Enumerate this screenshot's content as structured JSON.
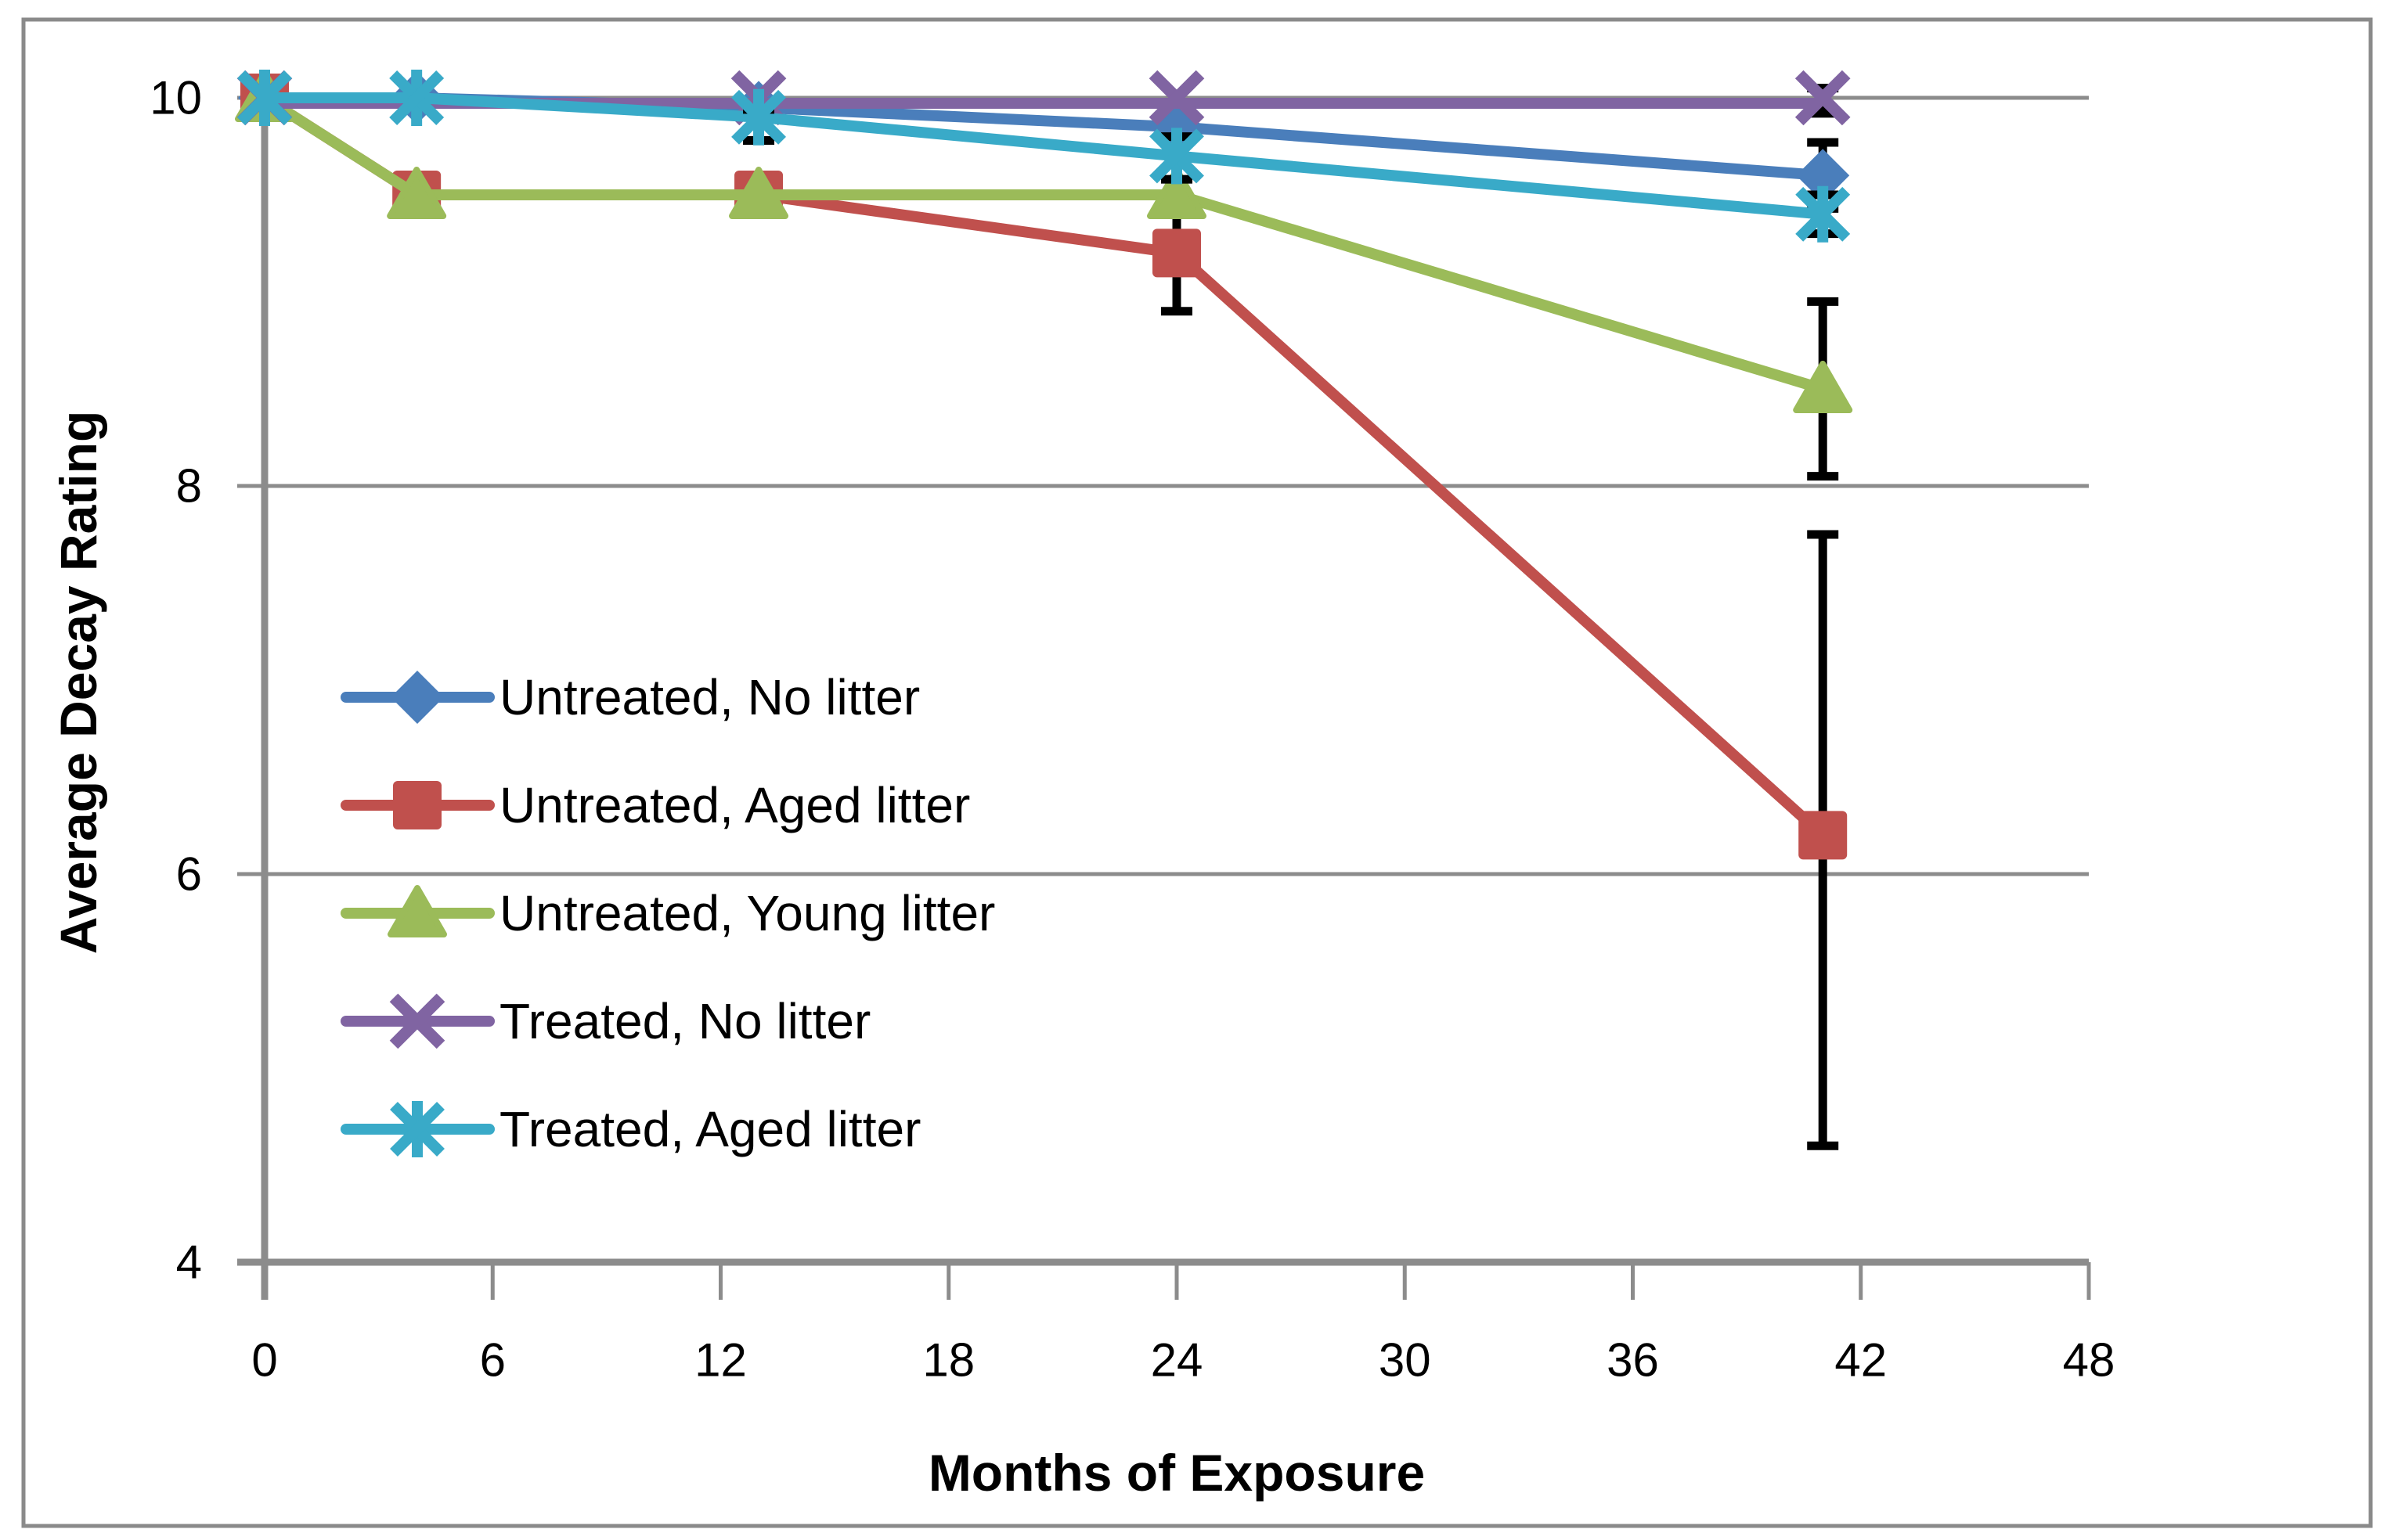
{
  "chart_data": {
    "type": "line",
    "title": "",
    "xlabel": "Months of Exposure",
    "ylabel": "Average Decay Rating",
    "x": [
      0,
      4,
      13,
      24,
      41
    ],
    "xlim": [
      0,
      48
    ],
    "ylim": [
      4,
      10
    ],
    "x_ticks": [
      0,
      6,
      12,
      18,
      24,
      30,
      36,
      42,
      48
    ],
    "y_ticks": [
      10,
      8,
      6,
      4
    ],
    "grid": "horizontal-gridlines-at-10-8-6",
    "legend_position": "inside-middle-left",
    "background_color": "#FFFFFF",
    "gridline_color": "#8C8C8C",
    "axis_color": "#8C8C8C",
    "border_color": "#8A8A8A",
    "error_bar_color": "#000000",
    "series": [
      {
        "name": "Untreated, No litter",
        "color": "#4A7EBB",
        "marker": "diamond",
        "values": [
          10,
          10,
          9.95,
          9.85,
          9.6
        ],
        "error_bars": {
          "41": {
            "plus": 0.17,
            "minus": 0.17
          }
        }
      },
      {
        "name": "Untreated, Aged litter",
        "color": "#C0504D",
        "marker": "square",
        "values": [
          10,
          9.5,
          9.5,
          9.2,
          6.2
        ],
        "error_bars": {
          "24": {
            "plus": 0.3,
            "minus": 0.3
          },
          "41": {
            "plus": 1.55,
            "minus": 1.6
          }
        }
      },
      {
        "name": "Untreated, Young litter",
        "color": "#9BBB59",
        "marker": "triangle",
        "values": [
          10,
          9.5,
          9.5,
          9.5,
          8.5
        ],
        "error_bars": {
          "41": {
            "plus": 0.45,
            "minus": 0.45
          }
        }
      },
      {
        "name": "Treated, No litter",
        "color": "#8064A2",
        "marker": "x",
        "values": [
          10,
          10,
          10,
          10,
          10
        ],
        "skip_marker_indices": [
          1
        ],
        "error_bars": {
          "41": {
            "plus": 0.05,
            "minus": 0.08
          }
        }
      },
      {
        "name": "Treated, Aged litter",
        "color": "#39AAC8",
        "marker": "asterisk",
        "values": [
          10,
          10,
          9.9,
          9.7,
          9.4
        ],
        "error_bars": {
          "13": {
            "plus": 0.04,
            "minus": 0.12
          },
          "24": {
            "plus": 0.1,
            "minus": 0.12
          },
          "41": {
            "plus": 0.1,
            "minus": 0.1
          }
        }
      }
    ]
  }
}
